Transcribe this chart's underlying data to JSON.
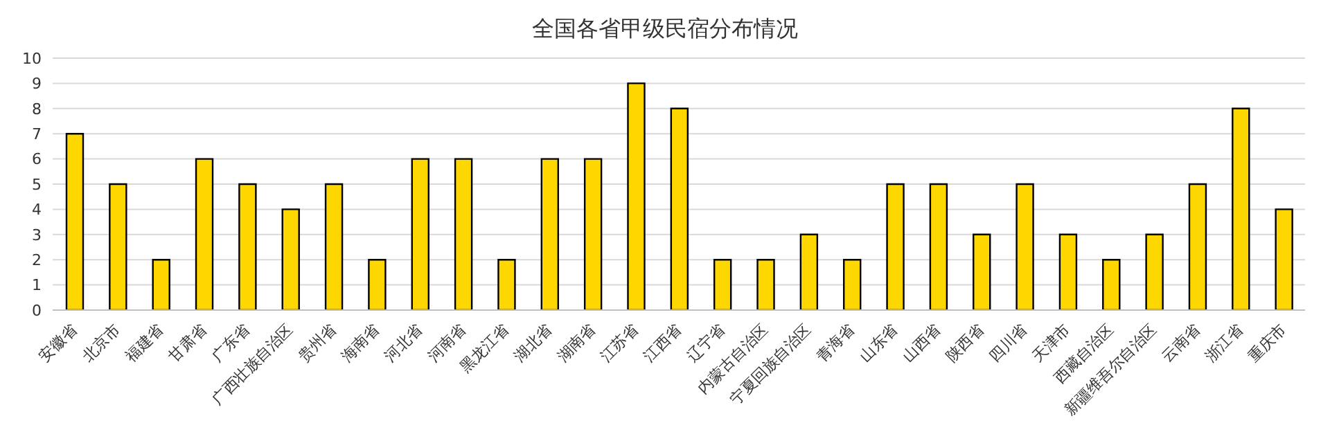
{
  "chart_data": {
    "type": "bar",
    "title": "全国各省甲级民宿分布情况",
    "categories": [
      "安徽省",
      "北京市",
      "福建省",
      "甘肃省",
      "广东省",
      "广西壮族自治区",
      "贵州省",
      "海南省",
      "河北省",
      "河南省",
      "黑龙江省",
      "湖北省",
      "湖南省",
      "江苏省",
      "江西省",
      "辽宁省",
      "内蒙古自治区",
      "宁夏回族自治区",
      "青海省",
      "山东省",
      "山西省",
      "陕西省",
      "四川省",
      "天津市",
      "西藏自治区",
      "新疆维吾尔自治区",
      "云南省",
      "浙江省",
      "重庆市"
    ],
    "values": [
      7,
      5,
      2,
      6,
      5,
      4,
      5,
      2,
      6,
      6,
      2,
      6,
      6,
      9,
      8,
      2,
      2,
      3,
      2,
      5,
      5,
      3,
      5,
      3,
      2,
      3,
      5,
      8,
      4
    ],
    "color": "#ffd700",
    "ylim": [
      0,
      10
    ],
    "yticks": [
      0,
      1,
      2,
      3,
      4,
      5,
      6,
      7,
      8,
      9,
      10
    ],
    "grid": "y"
  }
}
